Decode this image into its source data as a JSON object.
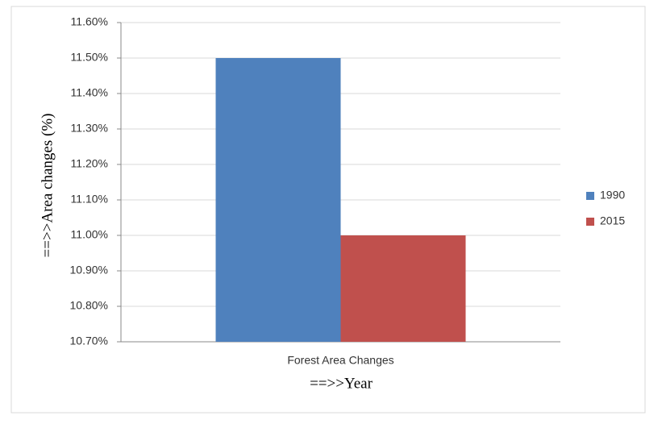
{
  "chart_data": {
    "type": "bar",
    "categories": [
      "Forest Area Changes"
    ],
    "series": [
      {
        "name": "1990",
        "color": "#4f81bd",
        "values": [
          11.5
        ]
      },
      {
        "name": "2015",
        "color": "#c0504d",
        "values": [
          11.0
        ]
      }
    ],
    "ylim": [
      10.7,
      11.6
    ],
    "yticks": [
      {
        "value": 10.7,
        "label": "10.70%"
      },
      {
        "value": 10.8,
        "label": "10.80%"
      },
      {
        "value": 10.9,
        "label": "10.90%"
      },
      {
        "value": 11.0,
        "label": "11.00%"
      },
      {
        "value": 11.1,
        "label": "11.10%"
      },
      {
        "value": 11.2,
        "label": "11.20%"
      },
      {
        "value": 11.3,
        "label": "11.30%"
      },
      {
        "value": 11.4,
        "label": "11.40%"
      },
      {
        "value": 11.5,
        "label": "11.50%"
      },
      {
        "value": 11.6,
        "label": "11.60%"
      }
    ],
    "ylabel": "==>>Area changes (%)",
    "xlabel": "==>>Year",
    "grid": true,
    "legend": "right"
  }
}
